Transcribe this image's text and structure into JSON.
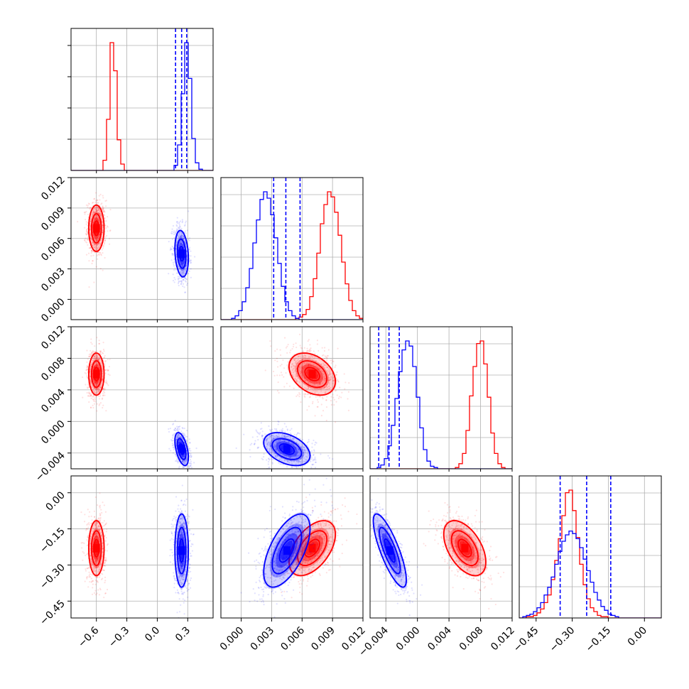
{
  "chart_data": {
    "type": "corner",
    "grid": true,
    "parameters": [
      {
        "range": [
          -0.85,
          0.55
        ],
        "ticks": [
          -0.6,
          -0.3,
          0.0,
          0.3
        ],
        "tick_labels": [
          "−0.6",
          "−0.3",
          "0.0",
          "0.3"
        ]
      },
      {
        "range": [
          -0.002,
          0.012
        ],
        "ticks": [
          0.0,
          0.003,
          0.006,
          0.009,
          0.012
        ],
        "tick_labels": [
          "0.000",
          "0.003",
          "0.006",
          "0.009",
          "0.012"
        ]
      },
      {
        "range": [
          -0.006,
          0.012
        ],
        "ticks": [
          -0.004,
          0.0,
          0.004,
          0.008,
          0.012
        ],
        "tick_labels": [
          "−0.004",
          "0.000",
          "0.004",
          "0.008",
          "0.012"
        ]
      },
      {
        "range": [
          -0.52,
          0.07
        ],
        "ticks": [
          -0.45,
          -0.3,
          -0.15,
          0.0
        ],
        "tick_labels": [
          "−0.45",
          "−0.30",
          "−0.15",
          "0.00"
        ]
      }
    ],
    "series": [
      {
        "color": "#ff0000",
        "means": [
          -0.6,
          0.007,
          0.006,
          -0.23
        ],
        "sigmas": [
          0.04,
          0.0012,
          0.0014,
          0.06
        ],
        "show_quantiles": false,
        "hist": [
          {
            "edges": [
              -0.85,
              0.55
            ],
            "counts": [
              0,
              0,
              0,
              0,
              0,
              0,
              0,
              0,
              0,
              8,
              40,
              100,
              78,
              24,
              5,
              0,
              0,
              0,
              0,
              0,
              0,
              0,
              0,
              0,
              0,
              0,
              0,
              0,
              0,
              0,
              0,
              0,
              0,
              0,
              0,
              0,
              0,
              0,
              0,
              0
            ]
          },
          {
            "edges": [
              -0.002,
              0.012
            ],
            "counts": [
              0,
              0,
              0,
              0,
              0,
              0,
              0,
              0,
              0,
              0,
              0,
              0,
              0,
              0,
              0,
              0,
              0,
              0,
              0,
              0,
              0,
              1,
              2,
              4,
              8,
              18,
              32,
              52,
              75,
              90,
              100,
              96,
              84,
              66,
              45,
              28,
              15,
              7,
              3,
              1
            ]
          },
          {
            "edges": [
              -0.006,
              0.012
            ],
            "counts": [
              0,
              0,
              0,
              0,
              0,
              0,
              0,
              0,
              0,
              0,
              0,
              0,
              0,
              0,
              0,
              0,
              0,
              0,
              0,
              0,
              0,
              0,
              0,
              0,
              1,
              4,
              12,
              30,
              57,
              80,
              98,
              100,
              82,
              56,
              28,
              12,
              4,
              1,
              0,
              0
            ]
          },
          {
            "edges": [
              -0.52,
              0.07
            ],
            "counts": [
              0,
              0,
              1,
              1,
              2,
              4,
              7,
              12,
              18,
              30,
              45,
              62,
              80,
              98,
              100,
              84,
              63,
              42,
              26,
              15,
              8,
              5,
              2,
              1,
              1,
              0,
              0,
              0,
              0,
              0,
              0,
              0,
              0,
              0,
              0,
              0,
              0,
              0,
              0,
              0
            ]
          }
        ]
      },
      {
        "color": "#0000ff",
        "means": [
          0.24,
          0.0045,
          -0.0035,
          -0.24
        ],
        "sigmas": [
          0.035,
          0.0012,
          0.0011,
          0.08
        ],
        "show_quantiles": true,
        "hist": [
          {
            "edges": [
              -0.85,
              0.55
            ],
            "counts": [
              0,
              0,
              0,
              0,
              0,
              0,
              0,
              0,
              0,
              0,
              0,
              0,
              0,
              0,
              0,
              0,
              0,
              0,
              0,
              0,
              0,
              0,
              0,
              0,
              0,
              0,
              0,
              0,
              0,
              4,
              20,
              60,
              100,
              72,
              25,
              6,
              1,
              0,
              0,
              0
            ]
          },
          {
            "edges": [
              -0.002,
              0.012
            ],
            "counts": [
              0,
              0,
              0,
              1,
              3,
              7,
              14,
              25,
              40,
              60,
              78,
              94,
              100,
              95,
              82,
              64,
              44,
              26,
              14,
              7,
              3,
              1,
              0,
              0,
              0,
              0,
              0,
              0,
              0,
              0,
              0,
              0,
              0,
              0,
              0,
              0,
              0,
              0,
              0,
              0
            ]
          },
          {
            "edges": [
              -0.006,
              0.012
            ],
            "counts": [
              0,
              0,
              1,
              3,
              8,
              18,
              34,
              55,
              76,
              93,
              100,
              96,
              80,
              56,
              32,
              15,
              6,
              2,
              1,
              0,
              0,
              0,
              0,
              0,
              0,
              0,
              0,
              0,
              0,
              0,
              0,
              0,
              0,
              0,
              0,
              0,
              0,
              0,
              0,
              0
            ]
          },
          {
            "edges": [
              -0.52,
              0.07
            ],
            "counts": [
              0,
              1,
              2,
              3,
              5,
              8,
              12,
              18,
              24,
              32,
              42,
              52,
              60,
              65,
              68,
              66,
              62,
              55,
              46,
              37,
              28,
              20,
              14,
              9,
              6,
              3,
              2,
              1,
              0,
              0,
              0,
              0,
              0,
              0,
              0,
              0,
              0,
              0,
              0,
              0
            ]
          }
        ],
        "quantiles": [
          [
            0.18,
            0.24,
            0.29
          ],
          [
            0.0032,
            0.0044,
            0.0058
          ],
          [
            -0.0049,
            -0.0036,
            -0.0023
          ],
          [
            -0.35,
            -0.24,
            -0.14
          ]
        ]
      }
    ],
    "correlations": [
      {
        "series": 0,
        "pair": [
          0,
          1
        ],
        "rho": 0.0
      },
      {
        "series": 0,
        "pair": [
          0,
          2
        ],
        "rho": 0.0
      },
      {
        "series": 0,
        "pair": [
          0,
          3
        ],
        "rho": 0.0
      },
      {
        "series": 0,
        "pair": [
          1,
          2
        ],
        "rho": -0.35
      },
      {
        "series": 0,
        "pair": [
          1,
          3
        ],
        "rho": 0.5
      },
      {
        "series": 0,
        "pair": [
          2,
          3
        ],
        "rho": -0.5
      },
      {
        "series": 1,
        "pair": [
          0,
          1
        ],
        "rho": -0.2
      },
      {
        "series": 1,
        "pair": [
          0,
          2
        ],
        "rho": -0.5
      },
      {
        "series": 1,
        "pair": [
          0,
          3
        ],
        "rho": 0.0
      },
      {
        "series": 1,
        "pair": [
          1,
          2
        ],
        "rho": -0.4
      },
      {
        "series": 1,
        "pair": [
          1,
          3
        ],
        "rho": 0.6
      },
      {
        "series": 1,
        "pair": [
          2,
          3
        ],
        "rho": -0.8
      }
    ],
    "contour_levels": [
      0.4,
      0.8,
      1.5
    ],
    "axes_on": {
      "x_labels_row": 3,
      "y_labels_col": 0
    }
  }
}
